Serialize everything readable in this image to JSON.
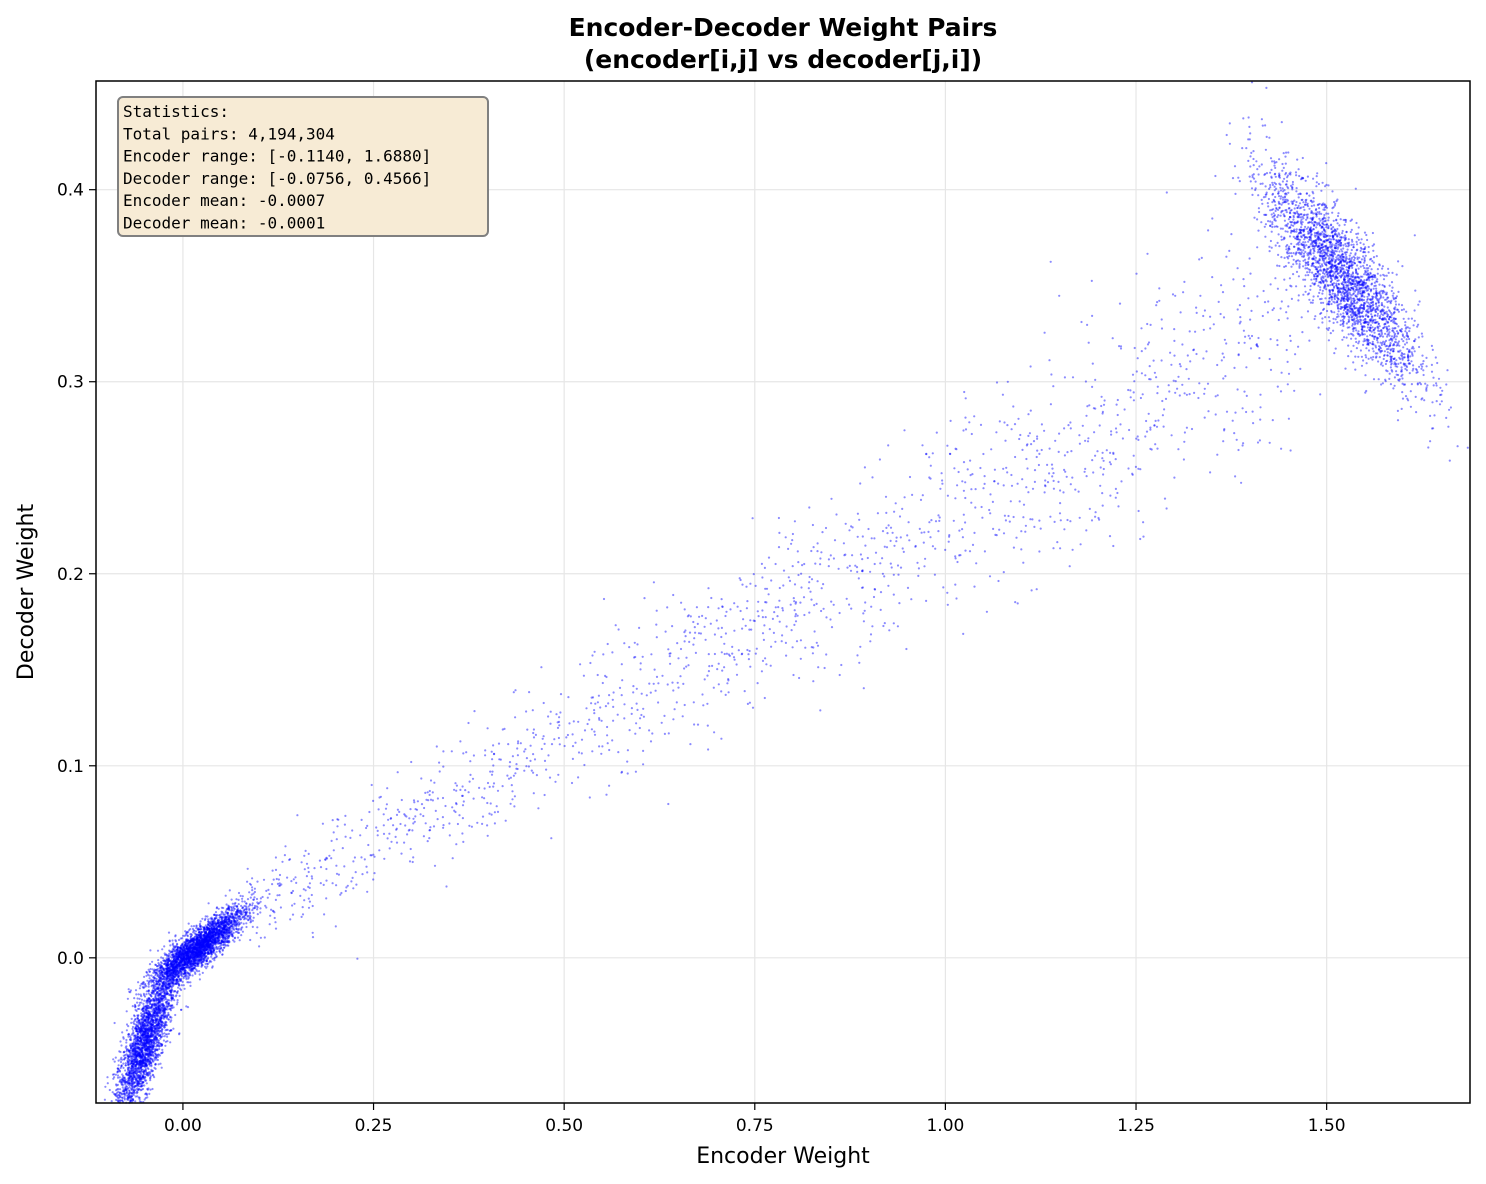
{
  "chart_data": {
    "type": "scatter",
    "title": "Encoder-Decoder Weight Pairs",
    "subtitle": "(encoder[i,j] vs decoder[j,i])",
    "xlabel": "Encoder Weight",
    "ylabel": "Decoder Weight",
    "xlim": [
      -0.114,
      1.688
    ],
    "ylim": [
      -0.0756,
      0.4566
    ],
    "x_ticks": [
      0.0,
      0.25,
      0.5,
      0.75,
      1.0,
      1.25,
      1.5
    ],
    "x_tick_labels": [
      "0.00",
      "0.25",
      "0.50",
      "0.75",
      "1.00",
      "1.25",
      "1.50"
    ],
    "y_ticks": [
      0.0,
      0.1,
      0.2,
      0.3,
      0.4
    ],
    "y_tick_labels": [
      "0.0",
      "0.1",
      "0.2",
      "0.3",
      "0.4"
    ],
    "grid": true,
    "point_color": "#0000ff",
    "clusters": [
      {
        "x_center": -0.05,
        "y_center": -0.045,
        "x_spread": 0.02,
        "y_spread": 0.012,
        "count": 2500
      },
      {
        "x_center": 0.02,
        "y_center": 0.005,
        "x_spread": 0.03,
        "y_spread": 0.005,
        "count": 3000
      },
      {
        "x_center": 1.52,
        "y_center": 0.355,
        "x_spread": 0.05,
        "y_spread": 0.025,
        "count": 2600
      }
    ],
    "trend": {
      "x_start": 0.05,
      "y_start": 0.015,
      "x_end": 1.45,
      "y_end": 0.33,
      "count": 1600,
      "y_noise": 0.025
    },
    "annotation": {
      "placement": "top-left",
      "lines": [
        "Statistics:",
        "Total pairs: 4,194,304",
        "Encoder range: [-0.1140, 1.6880]",
        "Decoder range: [-0.0756, 0.4566]",
        "Encoder mean: -0.0007",
        "Decoder mean: -0.0001"
      ],
      "box_fill": "#f7ebd5",
      "box_stroke": "#808080"
    }
  }
}
